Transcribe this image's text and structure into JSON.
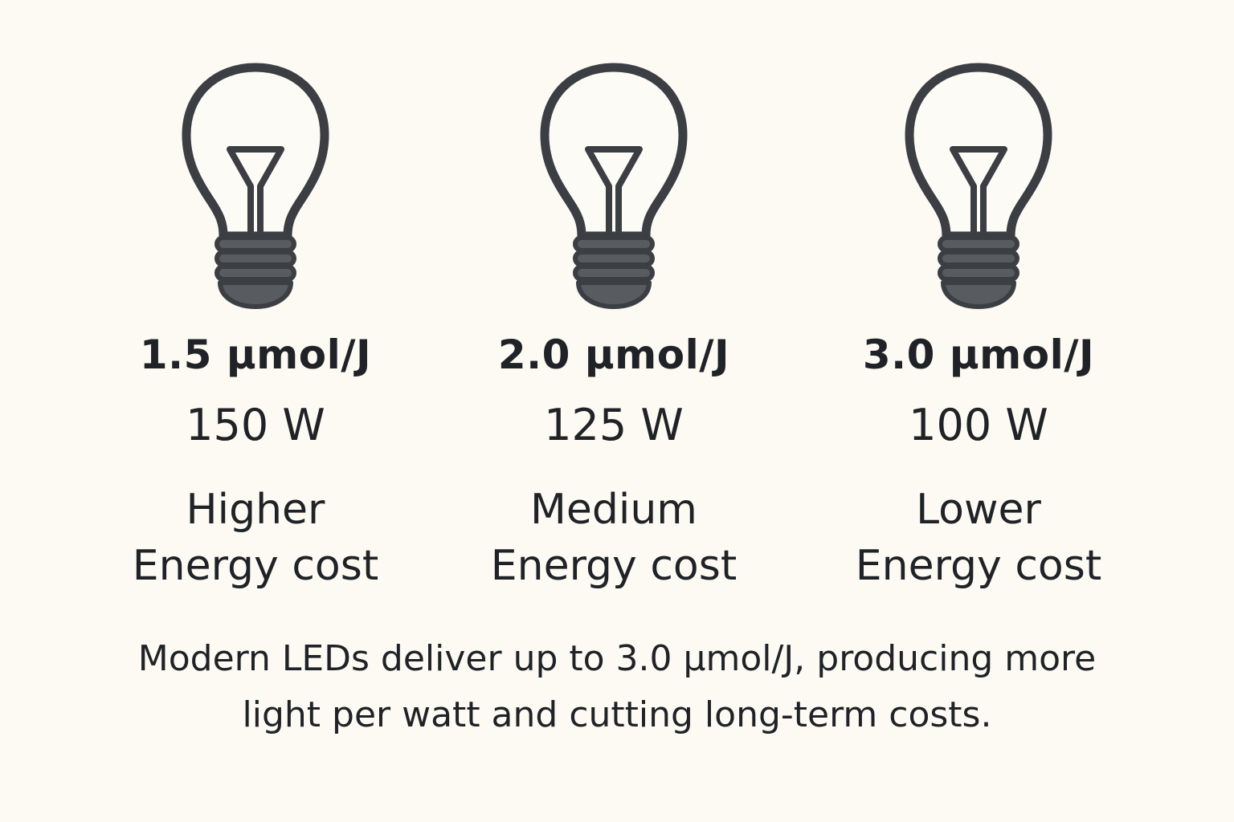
{
  "colors": {
    "background": "#fcfaf3",
    "icon_stroke": "#3b3e43",
    "icon_base": "#585b60",
    "text": "#1f2226"
  },
  "cards": [
    {
      "icon": "lightbulb-icon",
      "efficiency": "1.5 µmol/J",
      "wattage": "150 W",
      "cost_level": "Higher",
      "cost_label": "Energy cost"
    },
    {
      "icon": "lightbulb-icon",
      "efficiency": "2.0 µmol/J",
      "wattage": "125 W",
      "cost_level": "Medium",
      "cost_label": "Energy cost"
    },
    {
      "icon": "lightbulb-icon",
      "efficiency": "3.0 µmol/J",
      "wattage": "100 W",
      "cost_level": "Lower",
      "cost_label": "Energy cost"
    }
  ],
  "footnote": {
    "line1": "Modern LEDs deliver up to 3.0 µmol/J, producing more",
    "line2": "light per watt and cutting long-term costs."
  }
}
